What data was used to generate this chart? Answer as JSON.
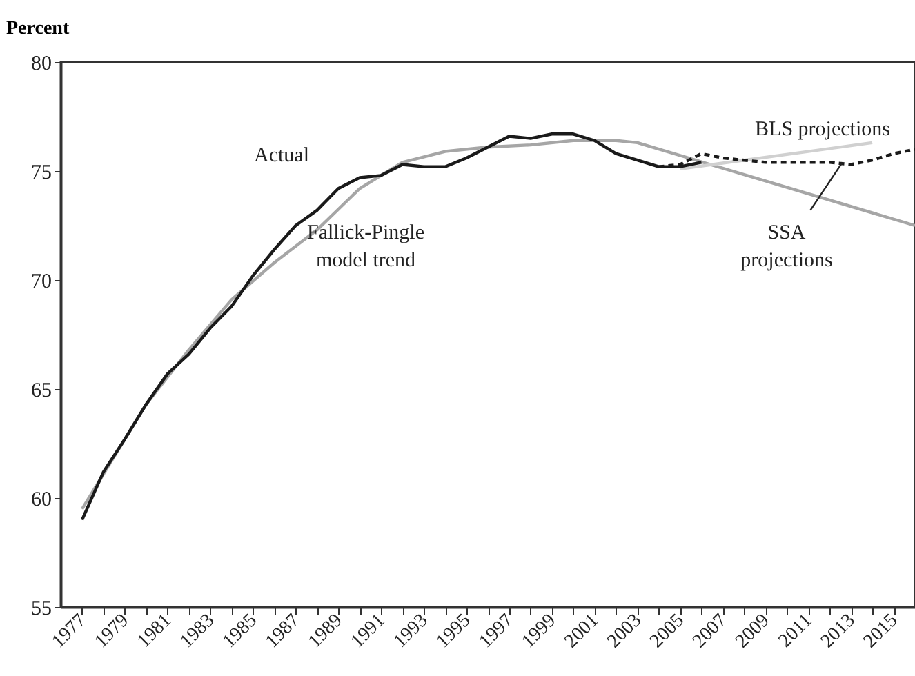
{
  "chart_data": {
    "type": "line",
    "ylabel": "Percent",
    "xlim": [
      1976,
      2016
    ],
    "ylim": [
      55,
      80
    ],
    "yticks": [
      55,
      60,
      65,
      70,
      75,
      80
    ],
    "xticks": [
      1977,
      {
        "value": 1978,
        "label": null
      },
      1979,
      {
        "value": 1980,
        "label": null
      },
      1981,
      {
        "value": 1982,
        "label": null
      },
      1983,
      {
        "value": 1984,
        "label": null
      },
      1985,
      {
        "value": 1986,
        "label": null
      },
      1987,
      {
        "value": 1988,
        "label": null
      },
      1989,
      {
        "value": 1990,
        "label": null
      },
      1991,
      {
        "value": 1992,
        "label": null
      },
      1993,
      {
        "value": 1994,
        "label": null
      },
      1995,
      {
        "value": 1996,
        "label": null
      },
      1997,
      {
        "value": 1998,
        "label": null
      },
      1999,
      {
        "value": 2000,
        "label": null
      },
      2001,
      {
        "value": 2002,
        "label": null
      },
      2003,
      {
        "value": 2004,
        "label": null
      },
      2005,
      {
        "value": 2006,
        "label": null
      },
      2007,
      {
        "value": 2008,
        "label": null
      },
      2009,
      {
        "value": 2010,
        "label": null
      },
      2011,
      {
        "value": 2012,
        "label": null
      },
      2013,
      {
        "value": 2014,
        "label": null
      },
      2015
    ],
    "grid": false,
    "series": [
      {
        "color": "#a6a6a6",
        "line_style": "solid",
        "x": [
          1977,
          1978,
          1980,
          1982,
          1984,
          1986,
          1988,
          1990,
          1992,
          1994,
          1996,
          1998,
          2000,
          2002,
          2003,
          2016
        ],
        "values": [
          59.5,
          61.1,
          64.3,
          66.8,
          69.1,
          70.8,
          72.3,
          74.2,
          75.4,
          75.9,
          76.1,
          76.2,
          76.4,
          76.4,
          76.3,
          72.5
        ]
      },
      {
        "color": "#d0d0d0",
        "line_style": "solid",
        "x": [
          2005,
          2008,
          2011,
          2014
        ],
        "values": [
          75.1,
          75.5,
          75.9,
          76.3
        ]
      },
      {
        "color": "#1a1a1a",
        "line_style": "solid",
        "x": [
          1977,
          1978,
          1979,
          1980,
          1981,
          1982,
          1983,
          1984,
          1985,
          1986,
          1987,
          1988,
          1989,
          1990,
          1991,
          1992,
          1993,
          1994,
          1995,
          1996,
          1997,
          1998,
          1999,
          2000,
          2001,
          2002,
          2003,
          2004,
          2005,
          2006
        ],
        "values": [
          59.0,
          61.2,
          62.7,
          64.3,
          65.7,
          66.6,
          67.8,
          68.8,
          70.2,
          71.4,
          72.5,
          73.2,
          74.2,
          74.7,
          74.8,
          75.3,
          75.2,
          75.2,
          75.6,
          76.1,
          76.6,
          76.5,
          76.7,
          76.7,
          76.4,
          75.8,
          75.5,
          75.2,
          75.2,
          75.4
        ]
      },
      {
        "color": "#1a1a1a",
        "line_style": "dashed",
        "x": [
          2004,
          2005,
          2006,
          2007,
          2008,
          2009,
          2010,
          2011,
          2012,
          2013,
          2014,
          2015,
          2016
        ],
        "values": [
          75.2,
          75.3,
          75.8,
          75.6,
          75.5,
          75.4,
          75.4,
          75.4,
          75.4,
          75.3,
          75.5,
          75.8,
          76.0
        ]
      }
    ],
    "annotations": [
      "Actual",
      "Fallick-Pingle\nmodel trend",
      "BLS projections",
      {
        "text": "SSA\nprojections",
        "x": 2012.6,
        "y": 75.4
      }
    ]
  }
}
